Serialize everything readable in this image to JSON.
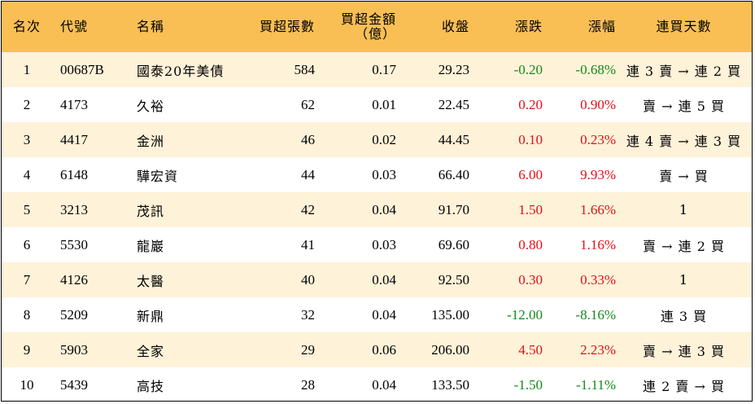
{
  "colors": {
    "header_bg": "#f9bf55",
    "odd_row_bg": "#fef2d9",
    "even_row_bg": "#ffffff",
    "up": "#e00f17",
    "down": "#12891a"
  },
  "headers": {
    "rank": "名次",
    "code": "代號",
    "name": "名稱",
    "net_lots": "買超張數",
    "net_amount_line1": "買超金額",
    "net_amount_line2": "（億）",
    "close": "收盤",
    "change": "漲跌",
    "change_pct": "漲幅",
    "streak": "連買天數"
  },
  "rows": [
    {
      "rank": "1",
      "code": "00687B",
      "name": "國泰20年美債",
      "net_lots": "584",
      "net_amount": "0.17",
      "close": "29.23",
      "change": "-0.20",
      "change_pct": "-0.68%",
      "direction": "down",
      "streak": "連 3 賣 → 連 2 買"
    },
    {
      "rank": "2",
      "code": "4173",
      "name": "久裕",
      "net_lots": "62",
      "net_amount": "0.01",
      "close": "22.45",
      "change": "0.20",
      "change_pct": "0.90%",
      "direction": "up",
      "streak": "賣 → 連 5 買"
    },
    {
      "rank": "3",
      "code": "4417",
      "name": "金洲",
      "net_lots": "46",
      "net_amount": "0.02",
      "close": "44.45",
      "change": "0.10",
      "change_pct": "0.23%",
      "direction": "up",
      "streak": "連 4 賣 → 連 3 買"
    },
    {
      "rank": "4",
      "code": "6148",
      "name": "驊宏資",
      "net_lots": "44",
      "net_amount": "0.03",
      "close": "66.40",
      "change": "6.00",
      "change_pct": "9.93%",
      "direction": "up",
      "streak": "賣 → 買"
    },
    {
      "rank": "5",
      "code": "3213",
      "name": "茂訊",
      "net_lots": "42",
      "net_amount": "0.04",
      "close": "91.70",
      "change": "1.50",
      "change_pct": "1.66%",
      "direction": "up",
      "streak": "1"
    },
    {
      "rank": "6",
      "code": "5530",
      "name": "龍巖",
      "net_lots": "41",
      "net_amount": "0.03",
      "close": "69.60",
      "change": "0.80",
      "change_pct": "1.16%",
      "direction": "up",
      "streak": "賣 → 連 2 買"
    },
    {
      "rank": "7",
      "code": "4126",
      "name": "太醫",
      "net_lots": "40",
      "net_amount": "0.04",
      "close": "92.50",
      "change": "0.30",
      "change_pct": "0.33%",
      "direction": "up",
      "streak": "1"
    },
    {
      "rank": "8",
      "code": "5209",
      "name": "新鼎",
      "net_lots": "32",
      "net_amount": "0.04",
      "close": "135.00",
      "change": "-12.00",
      "change_pct": "-8.16%",
      "direction": "down",
      "streak": "連 3 買"
    },
    {
      "rank": "9",
      "code": "5903",
      "name": "全家",
      "net_lots": "29",
      "net_amount": "0.06",
      "close": "206.00",
      "change": "4.50",
      "change_pct": "2.23%",
      "direction": "up",
      "streak": "賣 → 連 3 買"
    },
    {
      "rank": "10",
      "code": "5439",
      "name": "高技",
      "net_lots": "28",
      "net_amount": "0.04",
      "close": "133.50",
      "change": "-1.50",
      "change_pct": "-1.11%",
      "direction": "down",
      "streak": "連 2 賣 → 買"
    }
  ]
}
